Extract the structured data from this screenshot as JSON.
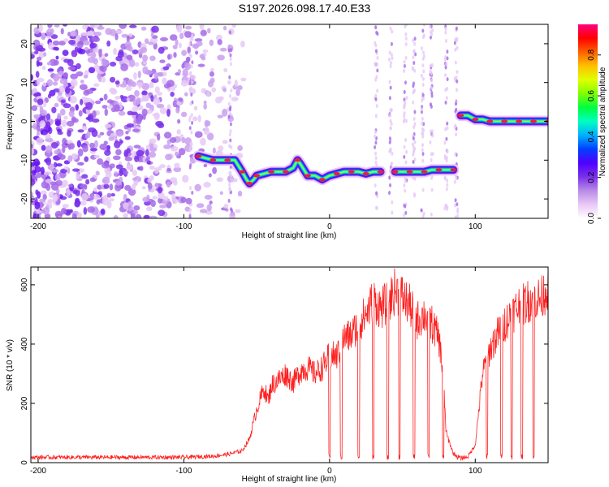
{
  "title": "S197.2026.098.17.40.E33",
  "chart_data": [
    {
      "type": "heatmap",
      "xlabel": "Height of straight line (km)",
      "ylabel": "Frequency (Hz)",
      "xlim": [
        -205,
        150
      ],
      "ylim": [
        -25,
        25
      ],
      "xticks": [
        -200,
        -100,
        0,
        100
      ],
      "yticks": [
        -20,
        -10,
        0,
        10,
        20
      ],
      "colorbar": {
        "label": "Normalized spectral amplitude",
        "range": [
          0,
          0.95
        ],
        "ticks": [
          0.0,
          0.2,
          0.4,
          0.6,
          0.8
        ],
        "tick_labels": [
          "0.0",
          "0.2",
          "0.4",
          "0.6",
          "0.8"
        ],
        "colors": [
          "#ffffff",
          "#e9c8f5",
          "#b98ae8",
          "#7a30ea",
          "#5000ff",
          "#0040ff",
          "#00b0ff",
          "#00ffc0",
          "#00ff40",
          "#80ff00",
          "#e0ff00",
          "#ffc000",
          "#ff6000",
          "#ff0000",
          "#ff0080"
        ]
      },
      "ridge": {
        "x": [
          -90,
          -85,
          -80,
          -75,
          -70,
          -65,
          -60,
          -57,
          -55,
          -52,
          -50,
          -45,
          -40,
          -35,
          -30,
          -25,
          -22,
          -20,
          -15,
          -10,
          -5,
          0,
          5,
          10,
          15,
          20,
          25,
          30,
          35,
          40,
          45,
          50,
          55,
          60,
          65,
          70,
          75,
          80,
          85,
          88,
          90,
          95,
          100,
          105,
          110,
          115,
          120,
          125,
          130,
          135,
          140,
          145,
          150
        ],
        "y": [
          -9,
          -9.5,
          -10,
          -10,
          -10,
          -10,
          -13,
          -15,
          -16,
          -15,
          -14,
          -13.5,
          -13,
          -13,
          -13,
          -12,
          -10,
          -11,
          -14,
          -14,
          -15,
          -14,
          -13.5,
          -13,
          -13,
          -13,
          -13.5,
          -13,
          -13,
          null,
          -13,
          -13,
          -13,
          -13,
          -13,
          -12.5,
          -12.5,
          -12.5,
          -12.5,
          null,
          1.5,
          1.5,
          0.5,
          0.5,
          0,
          0,
          0,
          0,
          0,
          0,
          0,
          0,
          0
        ]
      },
      "noise_region_x": [
        -205,
        -55
      ],
      "vertical_streaks_x": [
        -95,
        -68,
        32,
        42,
        52,
        58,
        64,
        70,
        80,
        87
      ]
    },
    {
      "type": "line",
      "xlabel": "Height of straight line (km)",
      "ylabel": "SNR (10 * v/v)",
      "xlim": [
        -205,
        150
      ],
      "ylim": [
        0,
        660
      ],
      "xticks": [
        -200,
        -100,
        0,
        100
      ],
      "yticks": [
        0,
        200,
        400,
        600
      ],
      "series": [
        {
          "name": "SNR",
          "color": "#ff2020",
          "x": [
            -205,
            -180,
            -160,
            -140,
            -120,
            -100,
            -90,
            -80,
            -70,
            -60,
            -55,
            -50,
            -45,
            -42,
            -40,
            -35,
            -30,
            -25,
            -20,
            -15,
            -10,
            -5,
            0,
            5,
            10,
            15,
            20,
            25,
            30,
            35,
            40,
            45,
            50,
            55,
            60,
            65,
            70,
            75,
            78,
            80,
            85,
            90,
            95,
            100,
            105,
            110,
            115,
            120,
            125,
            130,
            135,
            140,
            145,
            150
          ],
          "values": [
            18,
            18,
            18,
            18,
            18,
            18,
            20,
            22,
            28,
            40,
            80,
            180,
            250,
            210,
            260,
            280,
            300,
            270,
            310,
            320,
            300,
            320,
            360,
            360,
            420,
            430,
            470,
            500,
            550,
            520,
            540,
            580,
            560,
            530,
            480,
            500,
            470,
            420,
            300,
            100,
            30,
            15,
            20,
            60,
            300,
            380,
            430,
            470,
            500,
            530,
            540,
            560,
            550,
            600
          ]
        }
      ],
      "dropouts_x": [
        0,
        8,
        20,
        30,
        40,
        48,
        58,
        68,
        78,
        88,
        108,
        118,
        125,
        132,
        140
      ]
    }
  ]
}
